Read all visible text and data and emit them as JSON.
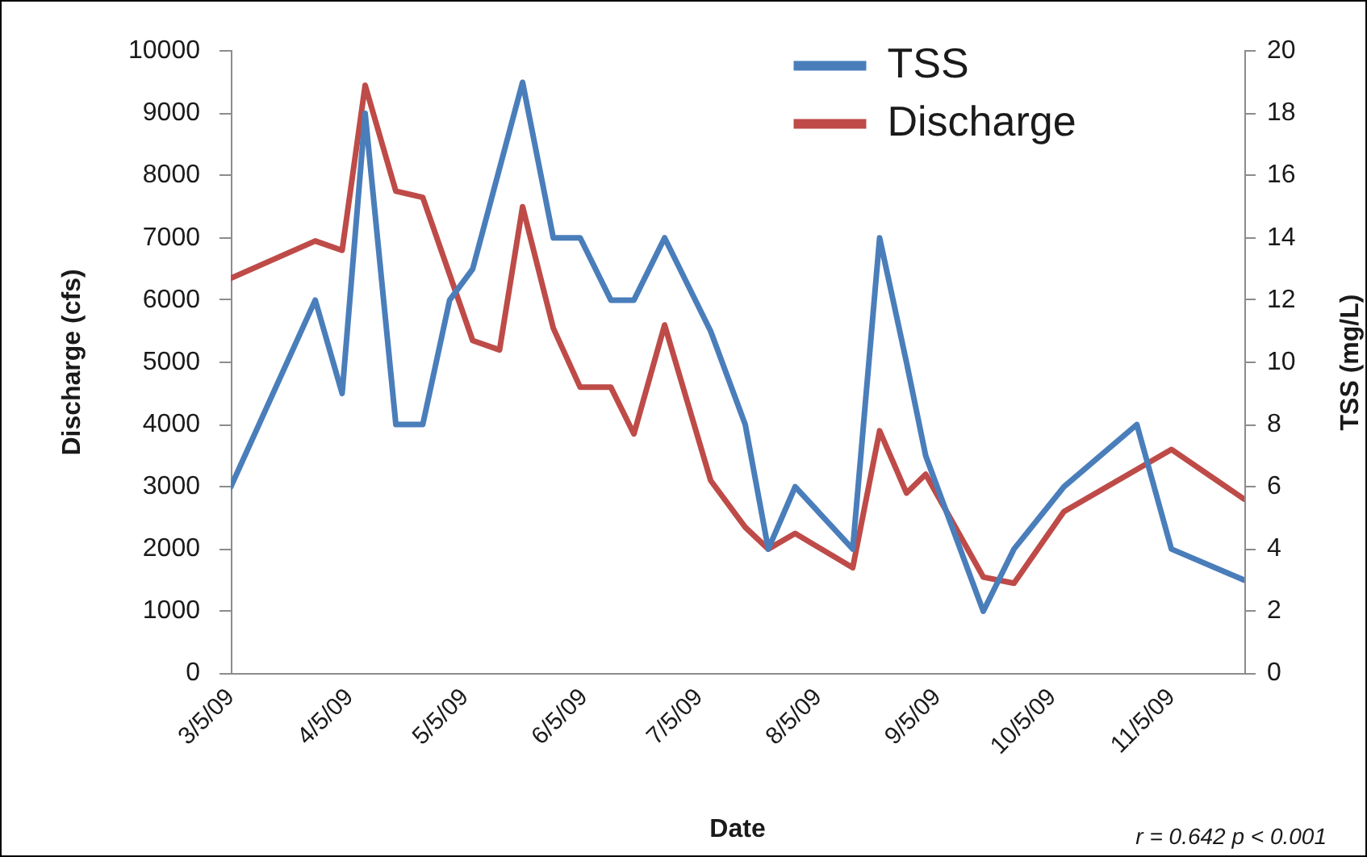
{
  "chart_data": {
    "type": "line",
    "xlabel": "Date",
    "ylabel": "Discharge (cfs)",
    "y2label": "TSS (mg/L)",
    "annotations": [
      "r = 0.642 p < 0.001"
    ],
    "xlim": [
      "2009-03-05",
      "2009-11-24"
    ],
    "xticks": [
      {
        "value": "2009-03-05",
        "label": "3/5/09"
      },
      {
        "value": "2009-04-05",
        "label": "4/5/09"
      },
      {
        "value": "2009-05-05",
        "label": "5/5/09"
      },
      {
        "value": "2009-06-05",
        "label": "6/5/09"
      },
      {
        "value": "2009-07-05",
        "label": "7/5/09"
      },
      {
        "value": "2009-08-05",
        "label": "8/5/09"
      },
      {
        "value": "2009-09-05",
        "label": "9/5/09"
      },
      {
        "value": "2009-10-05",
        "label": "10/5/09"
      },
      {
        "value": "2009-11-05",
        "label": "11/5/09"
      }
    ],
    "ylim": [
      0,
      10000
    ],
    "yticks": [
      0,
      1000,
      2000,
      3000,
      4000,
      5000,
      6000,
      7000,
      8000,
      9000,
      10000
    ],
    "y2lim": [
      0,
      20
    ],
    "y2ticks": [
      0,
      2,
      4,
      6,
      8,
      10,
      12,
      14,
      16,
      18,
      20
    ],
    "legend": "top right",
    "marker": "none",
    "series": [
      {
        "name": "TSS",
        "color": "#4a7ebb",
        "axis": "y2",
        "x": [
          "2009-03-05",
          "2009-03-27",
          "2009-04-03",
          "2009-04-09",
          "2009-04-17",
          "2009-04-24",
          "2009-05-01",
          "2009-05-07",
          "2009-05-20",
          "2009-05-28",
          "2009-06-04",
          "2009-06-12",
          "2009-06-18",
          "2009-06-26",
          "2009-07-08",
          "2009-07-17",
          "2009-07-23",
          "2009-07-30",
          "2009-08-14",
          "2009-08-21",
          "2009-08-28",
          "2009-09-02",
          "2009-09-17",
          "2009-09-25",
          "2009-10-08",
          "2009-10-27",
          "2009-11-05",
          "2009-11-24"
        ],
        "values": [
          6,
          12,
          9,
          18,
          8,
          8,
          12,
          13,
          19,
          14,
          14,
          12,
          12,
          14,
          11,
          8,
          4,
          6,
          4,
          14,
          10,
          7,
          2,
          4,
          6,
          8,
          4,
          3
        ]
      },
      {
        "name": "Discharge",
        "color": "#be4b48",
        "x": [
          "2009-03-05",
          "2009-03-27",
          "2009-04-03",
          "2009-04-09",
          "2009-04-17",
          "2009-04-24",
          "2009-05-07",
          "2009-05-14",
          "2009-05-20",
          "2009-05-28",
          "2009-06-04",
          "2009-06-12",
          "2009-06-18",
          "2009-06-26",
          "2009-07-08",
          "2009-07-17",
          "2009-07-23",
          "2009-07-30",
          "2009-08-14",
          "2009-08-21",
          "2009-08-28",
          "2009-09-02",
          "2009-09-17",
          "2009-09-25",
          "2009-10-08",
          "2009-11-05",
          "2009-11-24"
        ],
        "values": [
          6350,
          6950,
          6800,
          9450,
          7750,
          7650,
          5350,
          5200,
          7500,
          5550,
          4600,
          4600,
          3850,
          5600,
          3100,
          2350,
          2000,
          2250,
          1700,
          3900,
          2900,
          3200,
          1550,
          1450,
          2600,
          3600,
          2800
        ]
      }
    ]
  }
}
